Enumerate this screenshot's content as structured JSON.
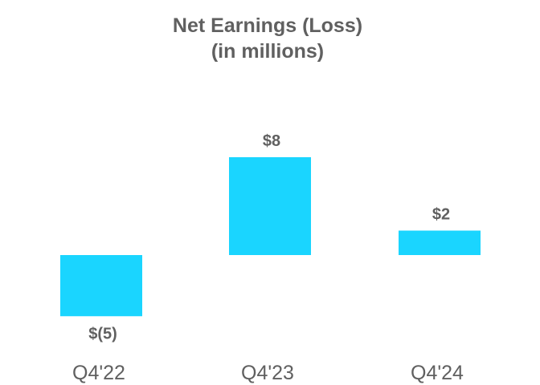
{
  "chart_data": {
    "type": "bar",
    "title": [
      "Net Earnings (Loss)",
      "(in millions)"
    ],
    "categories": [
      "Q4'22",
      "Q4'23",
      "Q4'24"
    ],
    "values": [
      -5,
      8,
      2
    ],
    "data_labels": [
      "$(5)",
      "$8",
      "$2"
    ],
    "xlabel": "",
    "ylabel": "",
    "grid": false,
    "legend": "none",
    "bar_color": "#1ad5ff"
  }
}
